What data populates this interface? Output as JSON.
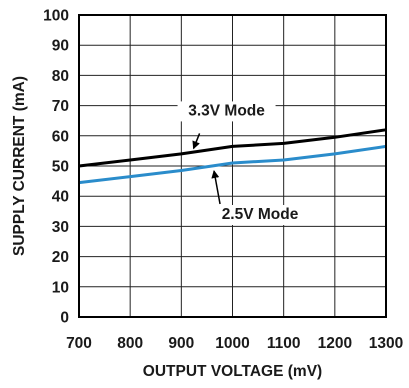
{
  "chart_data": {
    "type": "line",
    "title": "",
    "xlabel": "OUTPUT VOLTAGE (mV)",
    "ylabel": "SUPPLY CURRENT (mA)",
    "xlim": [
      700,
      1300
    ],
    "ylim": [
      0,
      100
    ],
    "x_ticks": [
      "700",
      "800",
      "900",
      "1000",
      "1100",
      "1200",
      "1300"
    ],
    "y_ticks": [
      "0",
      "10",
      "20",
      "30",
      "40",
      "50",
      "60",
      "70",
      "80",
      "90",
      "100"
    ],
    "grid": true,
    "legend": "none",
    "series": [
      {
        "name": "3.3V Mode",
        "color": "#000000",
        "x": [
          700,
          800,
          900,
          1000,
          1100,
          1200,
          1300
        ],
        "values": [
          50,
          52,
          54,
          56.5,
          57.5,
          59.5,
          62
        ]
      },
      {
        "name": "2.5V Mode",
        "color": "#2a8ccb",
        "x": [
          700,
          800,
          900,
          1000,
          1100,
          1200,
          1300
        ],
        "values": [
          44.5,
          46.5,
          48.5,
          51,
          52,
          54,
          56.5
        ]
      }
    ],
    "annotations": [
      {
        "text": "3.3V Mode",
        "series": 0,
        "at_x": 920
      },
      {
        "text": "2.5V Mode",
        "series": 1,
        "at_x": 960
      }
    ]
  }
}
